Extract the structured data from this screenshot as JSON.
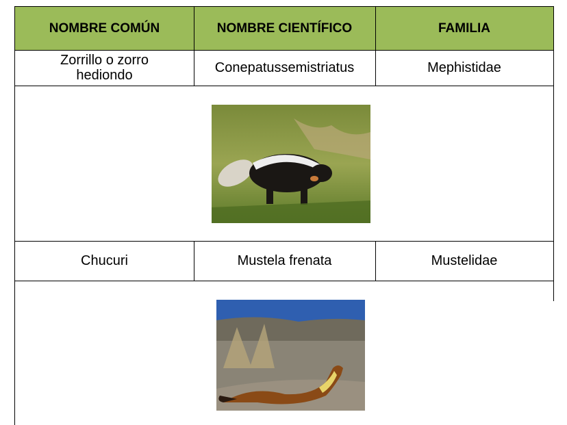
{
  "table": {
    "header": [
      "NOMBRE COMÚN",
      "NOMBRE CIENTÍFICO",
      "FAMILIA"
    ],
    "rows": [
      [
        "Zorrillo o zorro hediondo",
        "Conepatussemistriatus",
        "Mephistidae"
      ],
      [
        "Chucuri",
        "Mustela frenata",
        "Mustelidae"
      ]
    ]
  }
}
